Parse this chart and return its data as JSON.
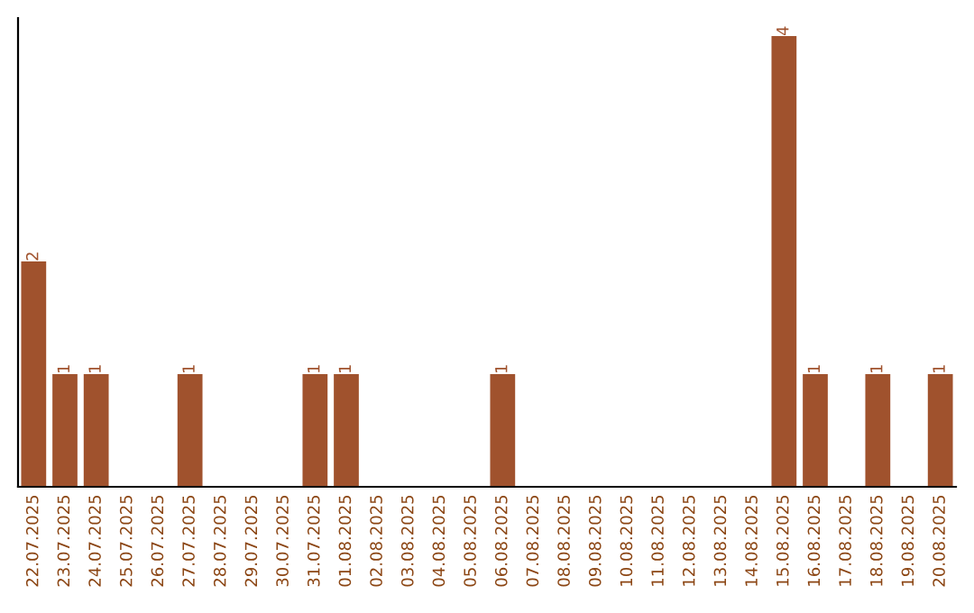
{
  "chart_data": {
    "type": "bar",
    "categories": [
      "22.07.2025",
      "23.07.2025",
      "24.07.2025",
      "25.07.2025",
      "26.07.2025",
      "27.07.2025",
      "28.07.2025",
      "29.07.2025",
      "30.07.2025",
      "31.07.2025",
      "01.08.2025",
      "02.08.2025",
      "03.08.2025",
      "04.08.2025",
      "05.08.2025",
      "06.08.2025",
      "07.08.2025",
      "08.08.2025",
      "09.08.2025",
      "10.08.2025",
      "11.08.2025",
      "12.08.2025",
      "13.08.2025",
      "14.08.2025",
      "15.08.2025",
      "16.08.2025",
      "17.08.2025",
      "18.08.2025",
      "19.08.2025",
      "20.08.2025"
    ],
    "values": [
      2,
      1,
      1,
      0,
      0,
      1,
      0,
      0,
      0,
      1,
      1,
      0,
      0,
      0,
      0,
      1,
      0,
      0,
      0,
      0,
      0,
      0,
      0,
      0,
      4,
      1,
      0,
      1,
      0,
      1
    ],
    "value_labels": [
      "2",
      "1",
      "1",
      null,
      null,
      "1",
      null,
      null,
      null,
      "1",
      "1",
      null,
      null,
      null,
      null,
      "1",
      null,
      null,
      null,
      null,
      null,
      null,
      null,
      null,
      "4",
      "1",
      null,
      "1",
      null,
      "1"
    ],
    "color": "#a0522d"
  }
}
